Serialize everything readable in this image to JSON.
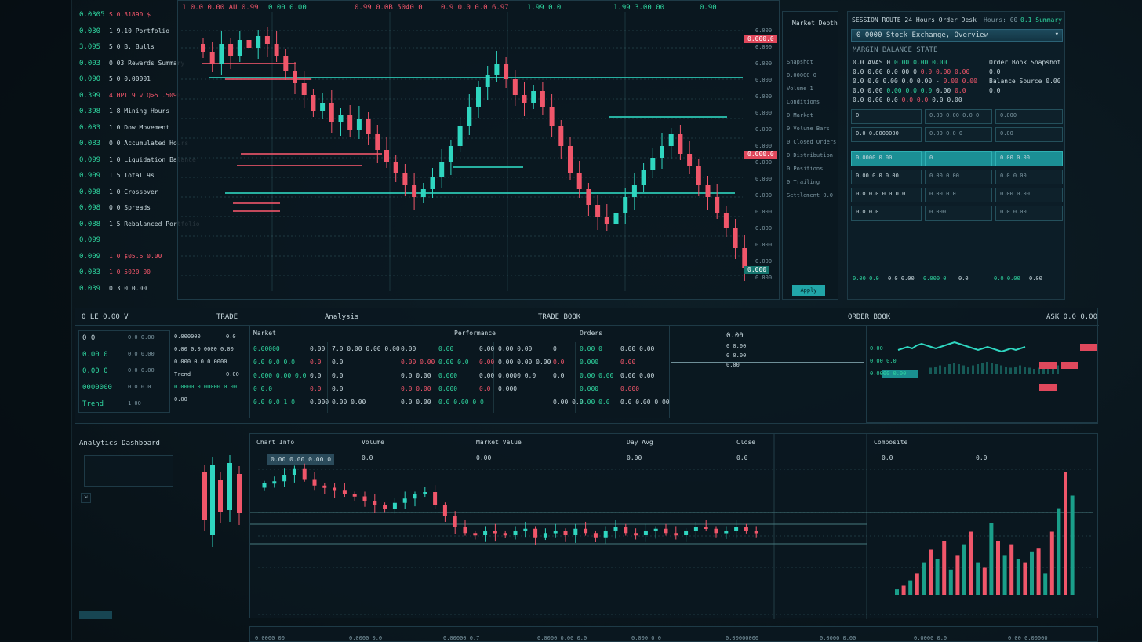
{
  "colors": {
    "up": "#2fd6c0",
    "down": "#f0566a",
    "accent": "#1fa4a8",
    "background": "#0a161d"
  },
  "watchlist": {
    "rows": [
      {
        "code": "0.0305",
        "text": "S 0.31890 $",
        "dir": "down"
      },
      {
        "code": "0.030",
        "text": "1 9.10 Portfolio"
      },
      {
        "code": "3.095",
        "text": "5 0 B. Bulls"
      },
      {
        "code": "0.003",
        "text": "0 03 Rewards Summary"
      },
      {
        "code": "0.090",
        "text": "5 0 0.00001"
      },
      {
        "code": "0.399",
        "text": "4 HPI 9 v  Q>5 .5090",
        "dir": "down"
      },
      {
        "code": "0.398",
        "text": "1 8 Mining Hours"
      },
      {
        "code": "0.083",
        "text": "1 0 Dow Movement"
      },
      {
        "code": "0.083",
        "text": "0 0 Accumulated Hours"
      },
      {
        "code": "0.099",
        "text": "1 0 Liquidation Balance"
      },
      {
        "code": "0.909",
        "text": "1 5 Total 9s"
      },
      {
        "code": "0.008",
        "text": "1 0 Crossover"
      },
      {
        "code": "0.098",
        "text": "0 0 Spreads"
      },
      {
        "code": "0.088",
        "text": "1 5 Rebalanced Portfolio"
      },
      {
        "code": "0.099",
        "text": ""
      },
      {
        "code": "0.009",
        "text": "1 0 $05.6  0.00",
        "dir": "down"
      },
      {
        "code": "0.083",
        "text": "1 0 5020 00",
        "dir": "down"
      },
      {
        "code": "0.039",
        "text": "0 3 0 0.00"
      }
    ]
  },
  "main_chart": {
    "top_labels": [
      {
        "text": "1 0.0 0.00 AU 0.99",
        "dir": "down"
      },
      {
        "text": "0 00 0.00",
        "dir": "up"
      },
      {
        "text": "0.99 0.0B 5040 0",
        "dir": "down"
      },
      {
        "text": "0.9 0.0 0.0 6.97",
        "dir": "down"
      },
      {
        "text": "1.99 0.0",
        "dir": "up"
      },
      {
        "text": "1.99 3.00 00",
        "dir": "up"
      },
      {
        "text": "0.90",
        "dir": "up"
      }
    ],
    "price_tags": [
      {
        "text": "0.000.0",
        "type": "down"
      },
      {
        "text": "0.000.0",
        "type": "down"
      },
      {
        "text": "0.000",
        "type": "up"
      }
    ],
    "axis_labels": [
      "0.000",
      "0.000",
      "0.000",
      "0.000",
      "0.000",
      "0.000",
      "0.000",
      "0.000",
      "0.000",
      "0.000",
      "0.000",
      "0.000",
      "0.000",
      "0.000",
      "0.000",
      "0.000"
    ],
    "closes": [
      335,
      320,
      345,
      330,
      350,
      340,
      355,
      345,
      330,
      310,
      295,
      280,
      260,
      270,
      245,
      255,
      235,
      250,
      230,
      210,
      195,
      180,
      165,
      150,
      160,
      175,
      195,
      215,
      240,
      265,
      290,
      305,
      320,
      300,
      280,
      270,
      285,
      265,
      240,
      215,
      180,
      160,
      140,
      125,
      115,
      130,
      150,
      165,
      185,
      200,
      215,
      230,
      205,
      190,
      165,
      150,
      130,
      110,
      85,
      60
    ]
  },
  "side_list": {
    "title": "Market Depth",
    "items": [
      "Snapshot",
      "0.00000 0",
      "Volume  1",
      "Conditions",
      "0 Market",
      "0 Volume Bars",
      "0 Closed Orders",
      "0 Distribution",
      "0 Positions",
      "0 Trailing",
      "Settlement 0.0"
    ],
    "button": "Apply",
    "footer": "0 0 0.00"
  },
  "order_panel": {
    "header": "SESSION ROUTE 24 Hours Order Desk",
    "header_right_1": "Hours: 00",
    "header_right_2": "0.1 Summary",
    "select_value": "0 0000 Stock Exchange, Overview",
    "section_title": "MARGIN BALANCE STATE",
    "lines": [
      [
        {
          "t": "0.0 AVAS 0 ",
          "c": "w"
        },
        {
          "t": "0.00 0.00 0.00",
          "c": "g"
        }
      ],
      [
        {
          "t": "0.0 0.00 0.0 00 0 ",
          "c": "w"
        },
        {
          "t": "0.0 0.00 0.00",
          "c": "r"
        }
      ],
      [
        {
          "t": "0.0 0.0 0.00 0.0 0.00 - ",
          "c": "w"
        },
        {
          "t": "0.00 0.00",
          "c": "r"
        }
      ],
      [
        {
          "t": "0.0 0.00 ",
          "c": "w"
        },
        {
          "t": "0.00 0.0 0.0",
          "c": "g"
        },
        {
          "t": " 0.00 ",
          "c": "w"
        },
        {
          "t": "0.0",
          "c": "r"
        }
      ],
      [
        {
          "t": "0.0 0.00 0.0 ",
          "c": "w"
        },
        {
          "t": "0.0 0.0",
          "c": "r"
        },
        {
          "t": " 0.0 0.00",
          "c": "w"
        }
      ]
    ],
    "side_notes": [
      "Order Book Snapshot",
      "0.0",
      "Balance Source   0.00",
      "0.0"
    ],
    "grid_rows": [
      [
        "0",
        "0.00   0.00  0.0  0",
        "0.000"
      ],
      [
        "0.0 0.0000000",
        "0.00  0.0  0",
        "0.00"
      ],
      [
        "0.0000 0.00",
        "0",
        "0.00 0.00"
      ],
      [
        "0.00  0.0  0.00",
        "0.00 0.00",
        "0.0 0.00"
      ],
      [
        "0.0 0.0  0.0 0.0",
        "0.00 0.0",
        "0.00 0.00"
      ],
      [
        "0.0  0.0",
        "0.000",
        "0.0 0.00"
      ]
    ],
    "footer": [
      "0.00 0.0",
      "0.0 0.00",
      "0.000 0",
      "0.0",
      "0.0 0.00",
      "0.00"
    ]
  },
  "middle": {
    "headers": [
      "0 LE 0.00 V",
      "TRADE",
      "Analysis",
      "TRADE BOOK",
      "ORDER BOOK",
      "ASK 0.0 0.00"
    ],
    "left_box": [
      [
        "0 0",
        "0.0 0.00"
      ],
      [
        "0.00 0",
        "0.0 0.00"
      ],
      [
        "0.00 0",
        "0.0 0.00"
      ],
      [
        "0000000",
        "0.0 0.0"
      ],
      [
        "Trend",
        "1   00"
      ]
    ],
    "info_box": [
      [
        "0.000000",
        "0.0"
      ],
      [
        "0.00 0.0 0000 0.00",
        ""
      ],
      [
        "0.000 0.0 0.0000",
        ""
      ],
      [
        "Trend",
        "0.00"
      ],
      [
        "0.0000 0.00000 0.00",
        ""
      ],
      [
        "0.00",
        ""
      ]
    ],
    "col1": {
      "title": "Market",
      "rows": [
        [
          "0.00000",
          "0.00"
        ],
        [
          "0.0 0.0 0.0",
          "0.0"
        ],
        [
          "0.000 0.00 0.0",
          "0.0"
        ],
        [
          "0 0.0",
          "0.0"
        ],
        [
          "0.0 0.0 1 0",
          "0.000"
        ]
      ]
    },
    "col2": {
      "title": "",
      "rows": [
        [
          "7.0 0.00 0.00 0.00",
          "0.00"
        ],
        [
          "0.0",
          "0.00 0.00"
        ],
        [
          "0.0",
          "0.0 0.00"
        ],
        [
          "0.0",
          "0.0 0.00"
        ],
        [
          "0.00 0.00",
          "0.0 0.00"
        ]
      ]
    },
    "col3": {
      "title": "Performance",
      "rows": [
        [
          "0.00",
          "0.00"
        ],
        [
          "0.00 0.0",
          "0.00"
        ],
        [
          "0.000",
          "0.00"
        ],
        [
          "0.000",
          "0.0"
        ],
        [
          "0.0 0.00 0.0",
          ""
        ]
      ]
    },
    "col4": {
      "title": "",
      "rows": [
        [
          "0.00 0.00",
          "0"
        ],
        [
          "0.00 0.00 0.00",
          "0.0"
        ],
        [
          "0.0000 0.0",
          "0.0"
        ],
        [
          "0.000",
          ""
        ],
        [
          "",
          "0.00 0.0"
        ]
      ]
    },
    "col5": {
      "title": "Orders",
      "rows": [
        [
          "0.00 0",
          "0.00 0.00"
        ],
        [
          "0.000",
          "0.00"
        ],
        [
          "0.00 0.00",
          "0.00 0.00"
        ],
        [
          "0.000",
          "0.000"
        ],
        [
          "0.00 0.0",
          "0.0 0.00 0.00"
        ]
      ]
    },
    "mini": {
      "title": "0.00",
      "rows": [
        "0 0.00",
        "0 0.00",
        "0.00"
      ]
    },
    "spark": {
      "rows": [
        "0.00",
        "0.00 0.0",
        "0.0000  0.00"
      ],
      "values": [
        5,
        6,
        7,
        6,
        8,
        9,
        8,
        7,
        6,
        7,
        8,
        9,
        10,
        9,
        8,
        7,
        6,
        5,
        6,
        7,
        6,
        5,
        4,
        5,
        6,
        5,
        6,
        7
      ]
    }
  },
  "bottom": {
    "left_title": "Analytics Dashboard",
    "headers": [
      "Chart Info",
      "Volume",
      "Market Value",
      "Day Avg",
      "Close",
      "Composite"
    ],
    "values": [
      "0.00 0.00 0.00 0",
      "0.0",
      "0.00",
      "0.00",
      "0.0"
    ],
    "right_values": [
      "0.0",
      "0.0"
    ],
    "closes": [
      60,
      55,
      40,
      25,
      50,
      65,
      70,
      75,
      85,
      90,
      100,
      110,
      120,
      105,
      95,
      85,
      80,
      110,
      135,
      160,
      175,
      180,
      170,
      175,
      180,
      170,
      165,
      185,
      175,
      170,
      180,
      165,
      175,
      185,
      170,
      160,
      175,
      180,
      170,
      165,
      175,
      180,
      170,
      160,
      165,
      175,
      170,
      160,
      170,
      175
    ],
    "volumes": [
      3,
      5,
      8,
      12,
      18,
      25,
      20,
      30,
      14,
      22,
      28,
      35,
      18,
      15,
      40,
      30,
      22,
      28,
      20,
      18,
      24,
      26,
      12,
      35,
      48,
      68,
      55
    ],
    "footer": [
      "0.0000 00",
      "0.0000 0.0",
      "0.00000 0.7",
      "0.0000 0.00 0.0",
      "0.000 0.0",
      "0.00000000",
      "0.0000 0.00",
      "0.0000 0.0",
      "0.00 0.00000"
    ]
  }
}
